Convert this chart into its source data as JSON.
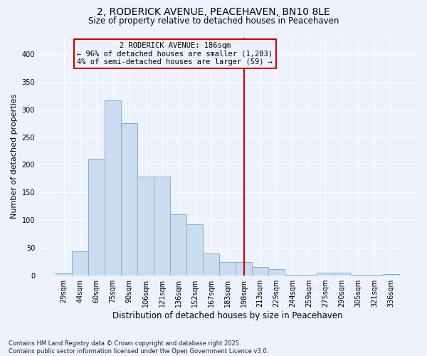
{
  "title1": "2, RODERICK AVENUE, PEACEHAVEN, BN10 8LE",
  "title2": "Size of property relative to detached houses in Peacehaven",
  "xlabel": "Distribution of detached houses by size in Peacehaven",
  "ylabel": "Number of detached properties",
  "categories": [
    "29sqm",
    "44sqm",
    "60sqm",
    "75sqm",
    "90sqm",
    "106sqm",
    "121sqm",
    "136sqm",
    "152sqm",
    "167sqm",
    "183sqm",
    "198sqm",
    "213sqm",
    "229sqm",
    "244sqm",
    "259sqm",
    "275sqm",
    "290sqm",
    "305sqm",
    "321sqm",
    "336sqm"
  ],
  "values": [
    4,
    44,
    211,
    316,
    275,
    179,
    179,
    110,
    93,
    40,
    24,
    24,
    15,
    12,
    1,
    1,
    5,
    5,
    1,
    1,
    3
  ],
  "bar_color": "#ccdcf0",
  "bar_edge_color": "#7aafd4",
  "vline_color": "#cc0000",
  "vline_x_index": 11.0,
  "annotation_text": "2 RODERICK AVENUE: 186sqm\n← 96% of detached houses are smaller (1,283)\n4% of semi-detached houses are larger (59) →",
  "background_color": "#eef2fc",
  "plot_bg_color": "#e8edf8",
  "footnote": "Contains HM Land Registry data © Crown copyright and database right 2025.\nContains public sector information licensed under the Open Government Licence v3.0.",
  "ylim": [
    0,
    430
  ],
  "yticks": [
    0,
    50,
    100,
    150,
    200,
    250,
    300,
    350,
    400
  ],
  "title1_fontsize": 10,
  "title2_fontsize": 8.5,
  "xlabel_fontsize": 8.5,
  "ylabel_fontsize": 8,
  "tick_fontsize": 7,
  "annotation_fontsize": 7.5,
  "footnote_fontsize": 6
}
